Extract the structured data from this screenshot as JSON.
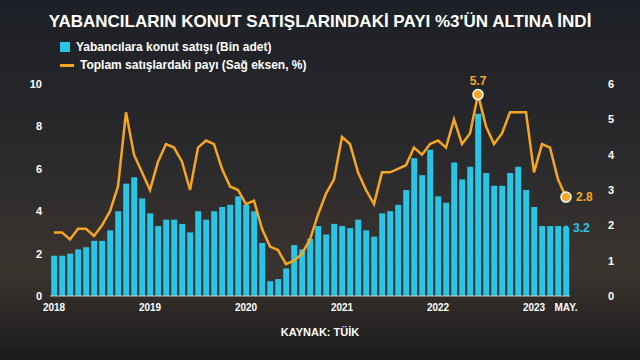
{
  "chart_data": {
    "type": "bar",
    "title": "YABANCILARIN KONUT SATIŞLARINDAKİ PAYI %3'ÜN ALTINA İNDİ",
    "source": "KAYNAK: TÜİK",
    "categories": [
      "2018",
      null,
      null,
      null,
      null,
      null,
      null,
      null,
      null,
      null,
      null,
      null,
      "2019",
      null,
      null,
      null,
      null,
      null,
      null,
      null,
      null,
      null,
      null,
      null,
      "2020",
      null,
      null,
      null,
      null,
      null,
      null,
      null,
      null,
      null,
      null,
      null,
      "2021",
      null,
      null,
      null,
      null,
      null,
      null,
      null,
      null,
      null,
      null,
      null,
      "2022",
      null,
      null,
      null,
      null,
      null,
      null,
      null,
      null,
      null,
      null,
      null,
      "2023",
      null,
      null,
      null,
      "MAY."
    ],
    "series": [
      {
        "name": "Yabancılara konut satışı (Bin adet)",
        "type": "bar",
        "color": "#29c5e6",
        "values": [
          1.9,
          1.9,
          2.0,
          2.2,
          2.3,
          2.6,
          2.6,
          3.1,
          4.0,
          5.3,
          5.6,
          4.6,
          3.9,
          3.3,
          3.6,
          3.6,
          3.4,
          3.0,
          4.0,
          3.6,
          4.0,
          4.2,
          4.3,
          4.7,
          4.3,
          4.0,
          2.5,
          0.7,
          0.8,
          1.3,
          2.4,
          2.2,
          2.7,
          3.3,
          2.9,
          3.4,
          3.3,
          3.2,
          3.6,
          3.1,
          2.8,
          3.9,
          4.0,
          4.3,
          5.0,
          6.5,
          5.7,
          6.9,
          4.7,
          4.4,
          6.3,
          5.5,
          6.1,
          8.6,
          5.8,
          5.2,
          5.2,
          5.8,
          6.1,
          5.0,
          4.2,
          3.3,
          3.3,
          3.3,
          3.2
        ]
      },
      {
        "name": "Toplam satışlardaki payı (Sağ eksen, %)",
        "type": "line",
        "axis": "y2",
        "color": "#f5a623",
        "values": [
          1.8,
          1.8,
          1.6,
          1.9,
          1.9,
          1.7,
          2.0,
          2.4,
          3.1,
          5.2,
          4.0,
          3.5,
          3.0,
          3.8,
          4.3,
          4.2,
          3.8,
          3.0,
          4.2,
          4.4,
          4.3,
          3.6,
          3.1,
          3.0,
          2.6,
          2.7,
          1.9,
          1.4,
          1.3,
          0.9,
          1.0,
          1.2,
          1.6,
          2.3,
          2.9,
          3.3,
          4.5,
          4.3,
          3.5,
          3.0,
          2.6,
          3.5,
          3.5,
          3.6,
          3.7,
          4.2,
          4.0,
          4.3,
          4.4,
          4.2,
          5.0,
          4.3,
          4.6,
          5.7,
          4.8,
          4.3,
          4.6,
          5.2,
          5.2,
          5.2,
          3.5,
          4.3,
          4.2,
          3.3,
          2.8
        ]
      }
    ],
    "ylim": [
      0,
      10
    ],
    "yticks": [
      0,
      2,
      4,
      6,
      8,
      10
    ],
    "y2lim": [
      0,
      6
    ],
    "y2ticks": [
      0,
      1,
      2,
      3,
      4,
      5,
      6
    ],
    "grid": false,
    "legend": "top-left",
    "annotations": [
      {
        "text": "5.7",
        "series": 1,
        "index": 53
      },
      {
        "text": "2.8",
        "series": 1,
        "index": 64
      },
      {
        "text": "3.2",
        "series": 0,
        "index": 64
      }
    ]
  }
}
